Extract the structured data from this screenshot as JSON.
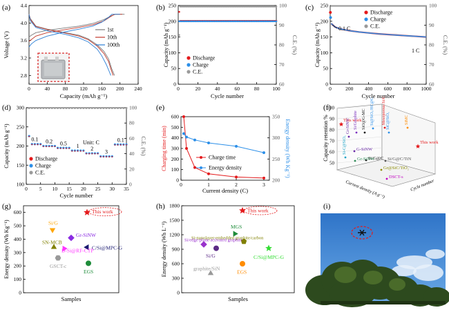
{
  "panel_labels": [
    "(a)",
    "(b)",
    "(c)",
    "(d)",
    "(e)",
    "(f)",
    "(g)",
    "(h)",
    "(i)"
  ],
  "colors": {
    "red": "#e41a1c",
    "blue": "#2c8fe8",
    "gray": "#9a9a9a",
    "dark": "#1a1a1a",
    "sky": "#3d84d6"
  },
  "chart_data": [
    {
      "panel": "a",
      "type": "line",
      "xlabel": "Capacity (mAh g⁻¹)",
      "ylabel": "Voltage (V)",
      "xlim": [
        0,
        240
      ],
      "ylim": [
        2.6,
        4.4
      ],
      "xticks": [
        0,
        40,
        80,
        120,
        160,
        200,
        240
      ],
      "yticks": [
        2.8,
        3.2,
        3.6,
        4.0,
        4.4
      ],
      "series": [
        {
          "name": "1st",
          "color": "#7a7a7a",
          "charge": [
            [
              0,
              3.68
            ],
            [
              5,
              3.72
            ],
            [
              15,
              3.78
            ],
            [
              40,
              3.83
            ],
            [
              80,
              3.89
            ],
            [
              110,
              3.93
            ],
            [
              140,
              3.99
            ],
            [
              165,
              4.08
            ],
            [
              182,
              4.17
            ],
            [
              190,
              4.2
            ],
            [
              210,
              4.2
            ]
          ],
          "discharge": [
            [
              0,
              4.2
            ],
            [
              3,
              4.1
            ],
            [
              15,
              3.93
            ],
            [
              40,
              3.86
            ],
            [
              80,
              3.78
            ],
            [
              110,
              3.72
            ],
            [
              130,
              3.64
            ],
            [
              150,
              3.5
            ],
            [
              165,
              3.35
            ],
            [
              175,
              3.18
            ],
            [
              182,
              2.95
            ],
            [
              188,
              2.8
            ]
          ]
        },
        {
          "name": "10th",
          "color": "#c0392b",
          "charge": [
            [
              0,
              3.58
            ],
            [
              5,
              3.62
            ],
            [
              15,
              3.7
            ],
            [
              40,
              3.78
            ],
            [
              80,
              3.85
            ],
            [
              110,
              3.9
            ],
            [
              140,
              3.96
            ],
            [
              165,
              4.05
            ],
            [
              180,
              4.15
            ],
            [
              188,
              4.2
            ],
            [
              205,
              4.2
            ]
          ],
          "discharge": [
            [
              0,
              4.2
            ],
            [
              3,
              4.08
            ],
            [
              15,
              3.92
            ],
            [
              40,
              3.85
            ],
            [
              80,
              3.77
            ],
            [
              110,
              3.7
            ],
            [
              130,
              3.62
            ],
            [
              150,
              3.47
            ],
            [
              165,
              3.3
            ],
            [
              175,
              3.12
            ],
            [
              180,
              2.95
            ],
            [
              185,
              2.8
            ]
          ]
        },
        {
          "name": "100th",
          "color": "#2c7fd6",
          "charge": [
            [
              0,
              3.45
            ],
            [
              5,
              3.52
            ],
            [
              15,
              3.6
            ],
            [
              40,
              3.7
            ],
            [
              80,
              3.8
            ],
            [
              110,
              3.86
            ],
            [
              140,
              3.93
            ],
            [
              160,
              4.02
            ],
            [
              175,
              4.13
            ],
            [
              182,
              4.2
            ],
            [
              200,
              4.2
            ]
          ],
          "discharge": [
            [
              0,
              4.2
            ],
            [
              3,
              4.05
            ],
            [
              15,
              3.9
            ],
            [
              40,
              3.82
            ],
            [
              80,
              3.74
            ],
            [
              110,
              3.66
            ],
            [
              130,
              3.57
            ],
            [
              150,
              3.4
            ],
            [
              160,
              3.25
            ],
            [
              170,
              3.05
            ],
            [
              176,
              2.9
            ],
            [
              180,
              2.8
            ]
          ]
        }
      ]
    },
    {
      "panel": "b",
      "type": "scatter",
      "xlabel": "Cycle number",
      "ylabel": "Capacity (mAh g⁻¹)",
      "y2label": "C.E. (%)",
      "xlim": [
        0,
        100
      ],
      "ylim": [
        0,
        250
      ],
      "y2lim": [
        60,
        100
      ],
      "xticks": [
        0,
        20,
        40,
        60,
        80,
        100
      ],
      "yticks": [
        0,
        50,
        100,
        150,
        200,
        250
      ],
      "y2ticks": [
        60,
        70,
        80,
        90,
        100
      ],
      "legend": [
        "Discharge",
        "Charge",
        "C.E."
      ],
      "discharge_value": 201,
      "charge_value": 200,
      "ce_value": 99.5,
      "first_discharge": 230,
      "first_ce": 85.0,
      "n_cycles": 100
    },
    {
      "panel": "c",
      "type": "scatter",
      "xlabel": "Cycle number",
      "ylabel": "Capacity (mAh g⁻¹)",
      "y2label": "C.E. (%)",
      "xlim": [
        0,
        1000
      ],
      "ylim": [
        0,
        250
      ],
      "y2lim": [
        60,
        100
      ],
      "xticks": [
        0,
        200,
        400,
        600,
        800,
        1000
      ],
      "yticks": [
        0,
        50,
        100,
        150,
        200,
        250
      ],
      "y2ticks": [
        60,
        70,
        80,
        90,
        100
      ],
      "legend": [
        "Discharge",
        "Charge",
        "C.E."
      ],
      "annotations": [
        "0.1 C",
        "1 C"
      ],
      "first_discharge": 228,
      "first_charge": 212,
      "capacity_points": [
        [
          10,
          193
        ],
        [
          50,
          182
        ],
        [
          100,
          176
        ],
        [
          200,
          170
        ],
        [
          300,
          166
        ],
        [
          400,
          163
        ],
        [
          500,
          160
        ],
        [
          600,
          158
        ],
        [
          700,
          156
        ],
        [
          800,
          154
        ],
        [
          900,
          152
        ],
        [
          1000,
          150
        ]
      ],
      "ce_value": 99.8
    },
    {
      "panel": "d",
      "type": "scatter",
      "xlabel": "Cycle number",
      "ylabel": "Capacity (mAh g⁻¹)",
      "y2label": "C.E. (%)",
      "xlim": [
        0,
        35
      ],
      "ylim": [
        100,
        300
      ],
      "y2lim": [
        0,
        100
      ],
      "xticks": [
        0,
        5,
        10,
        15,
        20,
        25,
        30,
        35
      ],
      "yticks": [
        100,
        150,
        200,
        250,
        300
      ],
      "y2ticks": [
        0,
        20,
        40,
        60,
        80,
        100
      ],
      "legend": [
        "Discharge",
        "Charge",
        "C.E."
      ],
      "unit_label": "Unit: C",
      "rates": [
        {
          "label": "0.1",
          "start": 1,
          "end": 5,
          "value": 205
        },
        {
          "label": "0.2",
          "start": 6,
          "end": 10,
          "value": 200
        },
        {
          "label": "0.5",
          "start": 11,
          "end": 15,
          "value": 195
        },
        {
          "label": "1",
          "start": 16,
          "end": 20,
          "value": 188
        },
        {
          "label": "2",
          "start": 21,
          "end": 25,
          "value": 181
        },
        {
          "label": "3",
          "start": 26,
          "end": 30,
          "value": 173
        },
        {
          "label": "0.1",
          "start": 31,
          "end": 35,
          "value": 204
        }
      ],
      "first_discharge": 226,
      "ce_value": 99.5
    },
    {
      "panel": "e",
      "type": "line",
      "xlabel": "Current density (C)",
      "ylabel": "Charging time (min)",
      "y2label": "Energy density (Wh Kg⁻¹)",
      "xlim": [
        0,
        3.2
      ],
      "ylim": [
        0,
        600
      ],
      "y2lim": [
        200,
        350
      ],
      "xticks": [
        0,
        1,
        2,
        3
      ],
      "yticks": [
        0,
        100,
        200,
        300,
        400,
        500,
        600
      ],
      "y2ticks": [
        200,
        250,
        300,
        350
      ],
      "series": [
        {
          "name": "Charge time",
          "color": "#e41a1c",
          "x": [
            0.1,
            0.2,
            0.5,
            1,
            2,
            3
          ],
          "y": [
            600,
            300,
            120,
            60,
            30,
            20
          ]
        },
        {
          "name": "Energy density",
          "color": "#2c8fe8",
          "x": [
            0.1,
            0.2,
            0.5,
            1,
            2,
            3
          ],
          "y": [
            310,
            302,
            295,
            288,
            280,
            265
          ]
        }
      ]
    },
    {
      "panel": "f",
      "type": "scatter",
      "zlabel": "Capacity retention  %",
      "xlabel": "Current density (A g⁻¹)",
      "ylabel": "Cycle number",
      "zticks": [
        50,
        60,
        70,
        80,
        90,
        100
      ],
      "labels": [
        {
          "text": "This work",
          "color": "#e41a1c"
        },
        {
          "text": "This work",
          "color": "#e41a1c"
        },
        {
          "text": "Gr-SiNW",
          "color": "#6b2aa8"
        },
        {
          "text": "Si@SiOₓ/HC@C",
          "color": "#2c8fe8"
        },
        {
          "text": "Si/Graphite",
          "color": "#7b2fbe"
        },
        {
          "text": "SiO@G-MC",
          "color": "#1a1a1a"
        },
        {
          "text": "Mesoporous Si/C",
          "color": "#e41a1c"
        },
        {
          "text": "SiC@SiOₓ",
          "color": "#2c8fe8"
        },
        {
          "text": "SiMC",
          "color": "#ff8c00"
        },
        {
          "text": "G-SiNW",
          "color": "#6b2aa8"
        },
        {
          "text": "Si/G@C",
          "color": "#1a1a1a"
        },
        {
          "text": "Gr-SiNW",
          "color": "#2e8b57"
        },
        {
          "text": "Si-C@SiOₓ",
          "color": "#1aa3c6"
        },
        {
          "text": "Si/G@C/TiN",
          "color": "#555555"
        },
        {
          "text": "Gr@SiC/TiO₂",
          "color": "#8b8b00"
        },
        {
          "text": "DSCT-s",
          "color": "#c000c0"
        }
      ]
    },
    {
      "panel": "g",
      "type": "scatter",
      "xlabel": "Samples",
      "ylabel": "Energy density (Wh Kg⁻¹)",
      "ylim": [
        0,
        650
      ],
      "yticks": [
        0,
        100,
        200,
        300,
        400,
        500,
        600
      ],
      "points": [
        {
          "name": "This work",
          "value": 600,
          "color": "#e41a1c",
          "shape": "star"
        },
        {
          "name": "Si/G",
          "value": 470,
          "color": "#ffa500",
          "shape": "triangle-down"
        },
        {
          "name": "Gr-SiNW",
          "value": 410,
          "color": "#8a2be2",
          "shape": "diamond"
        },
        {
          "name": "SN-MCB",
          "value": 340,
          "color": "#808000",
          "shape": "triangle"
        },
        {
          "name": "C/Si@MPC-G",
          "value": 340,
          "color": "#191970",
          "shape": "triangle-left"
        },
        {
          "name": "D-Si@RF-CTP",
          "value": 330,
          "color": "#ff33ff",
          "shape": "triangle-right"
        },
        {
          "name": "GSCT-c",
          "value": 260,
          "color": "#999999",
          "shape": "hexagon"
        },
        {
          "name": "EGS",
          "value": 220,
          "color": "#1e8c3a",
          "shape": "circle"
        }
      ]
    },
    {
      "panel": "h",
      "type": "scatter",
      "xlabel": "Samples",
      "ylabel": "Energy density (Wh L⁻¹)",
      "ylim": [
        0,
        1800
      ],
      "yticks": [
        0,
        300,
        600,
        900,
        1200,
        1500,
        1800
      ],
      "points": [
        {
          "name": "This work",
          "value": 1700,
          "color": "#e41a1c",
          "shape": "star"
        },
        {
          "name": "MGS",
          "value": 1220,
          "color": "#1e8c3a",
          "shape": "triangle-right"
        },
        {
          "name": "Si-nanolayer-embedded graphite/carbon",
          "value": 1060,
          "color": "#808000",
          "shape": "pentagon"
        },
        {
          "name": "Si/edge-plane activated graphite",
          "value": 1000,
          "color": "#9932cc",
          "shape": "diamond"
        },
        {
          "name": "C/Si@MPC-G",
          "value": 920,
          "color": "#33dd33",
          "shape": "star"
        },
        {
          "name": "Si/G",
          "value": 920,
          "color": "#5b2a86",
          "shape": "circle"
        },
        {
          "name": "EGS",
          "value": 600,
          "color": "#ff8c00",
          "shape": "circle"
        },
        {
          "name": "graphite/SiN",
          "value": 400,
          "color": "#999999",
          "shape": "triangle"
        }
      ]
    }
  ]
}
